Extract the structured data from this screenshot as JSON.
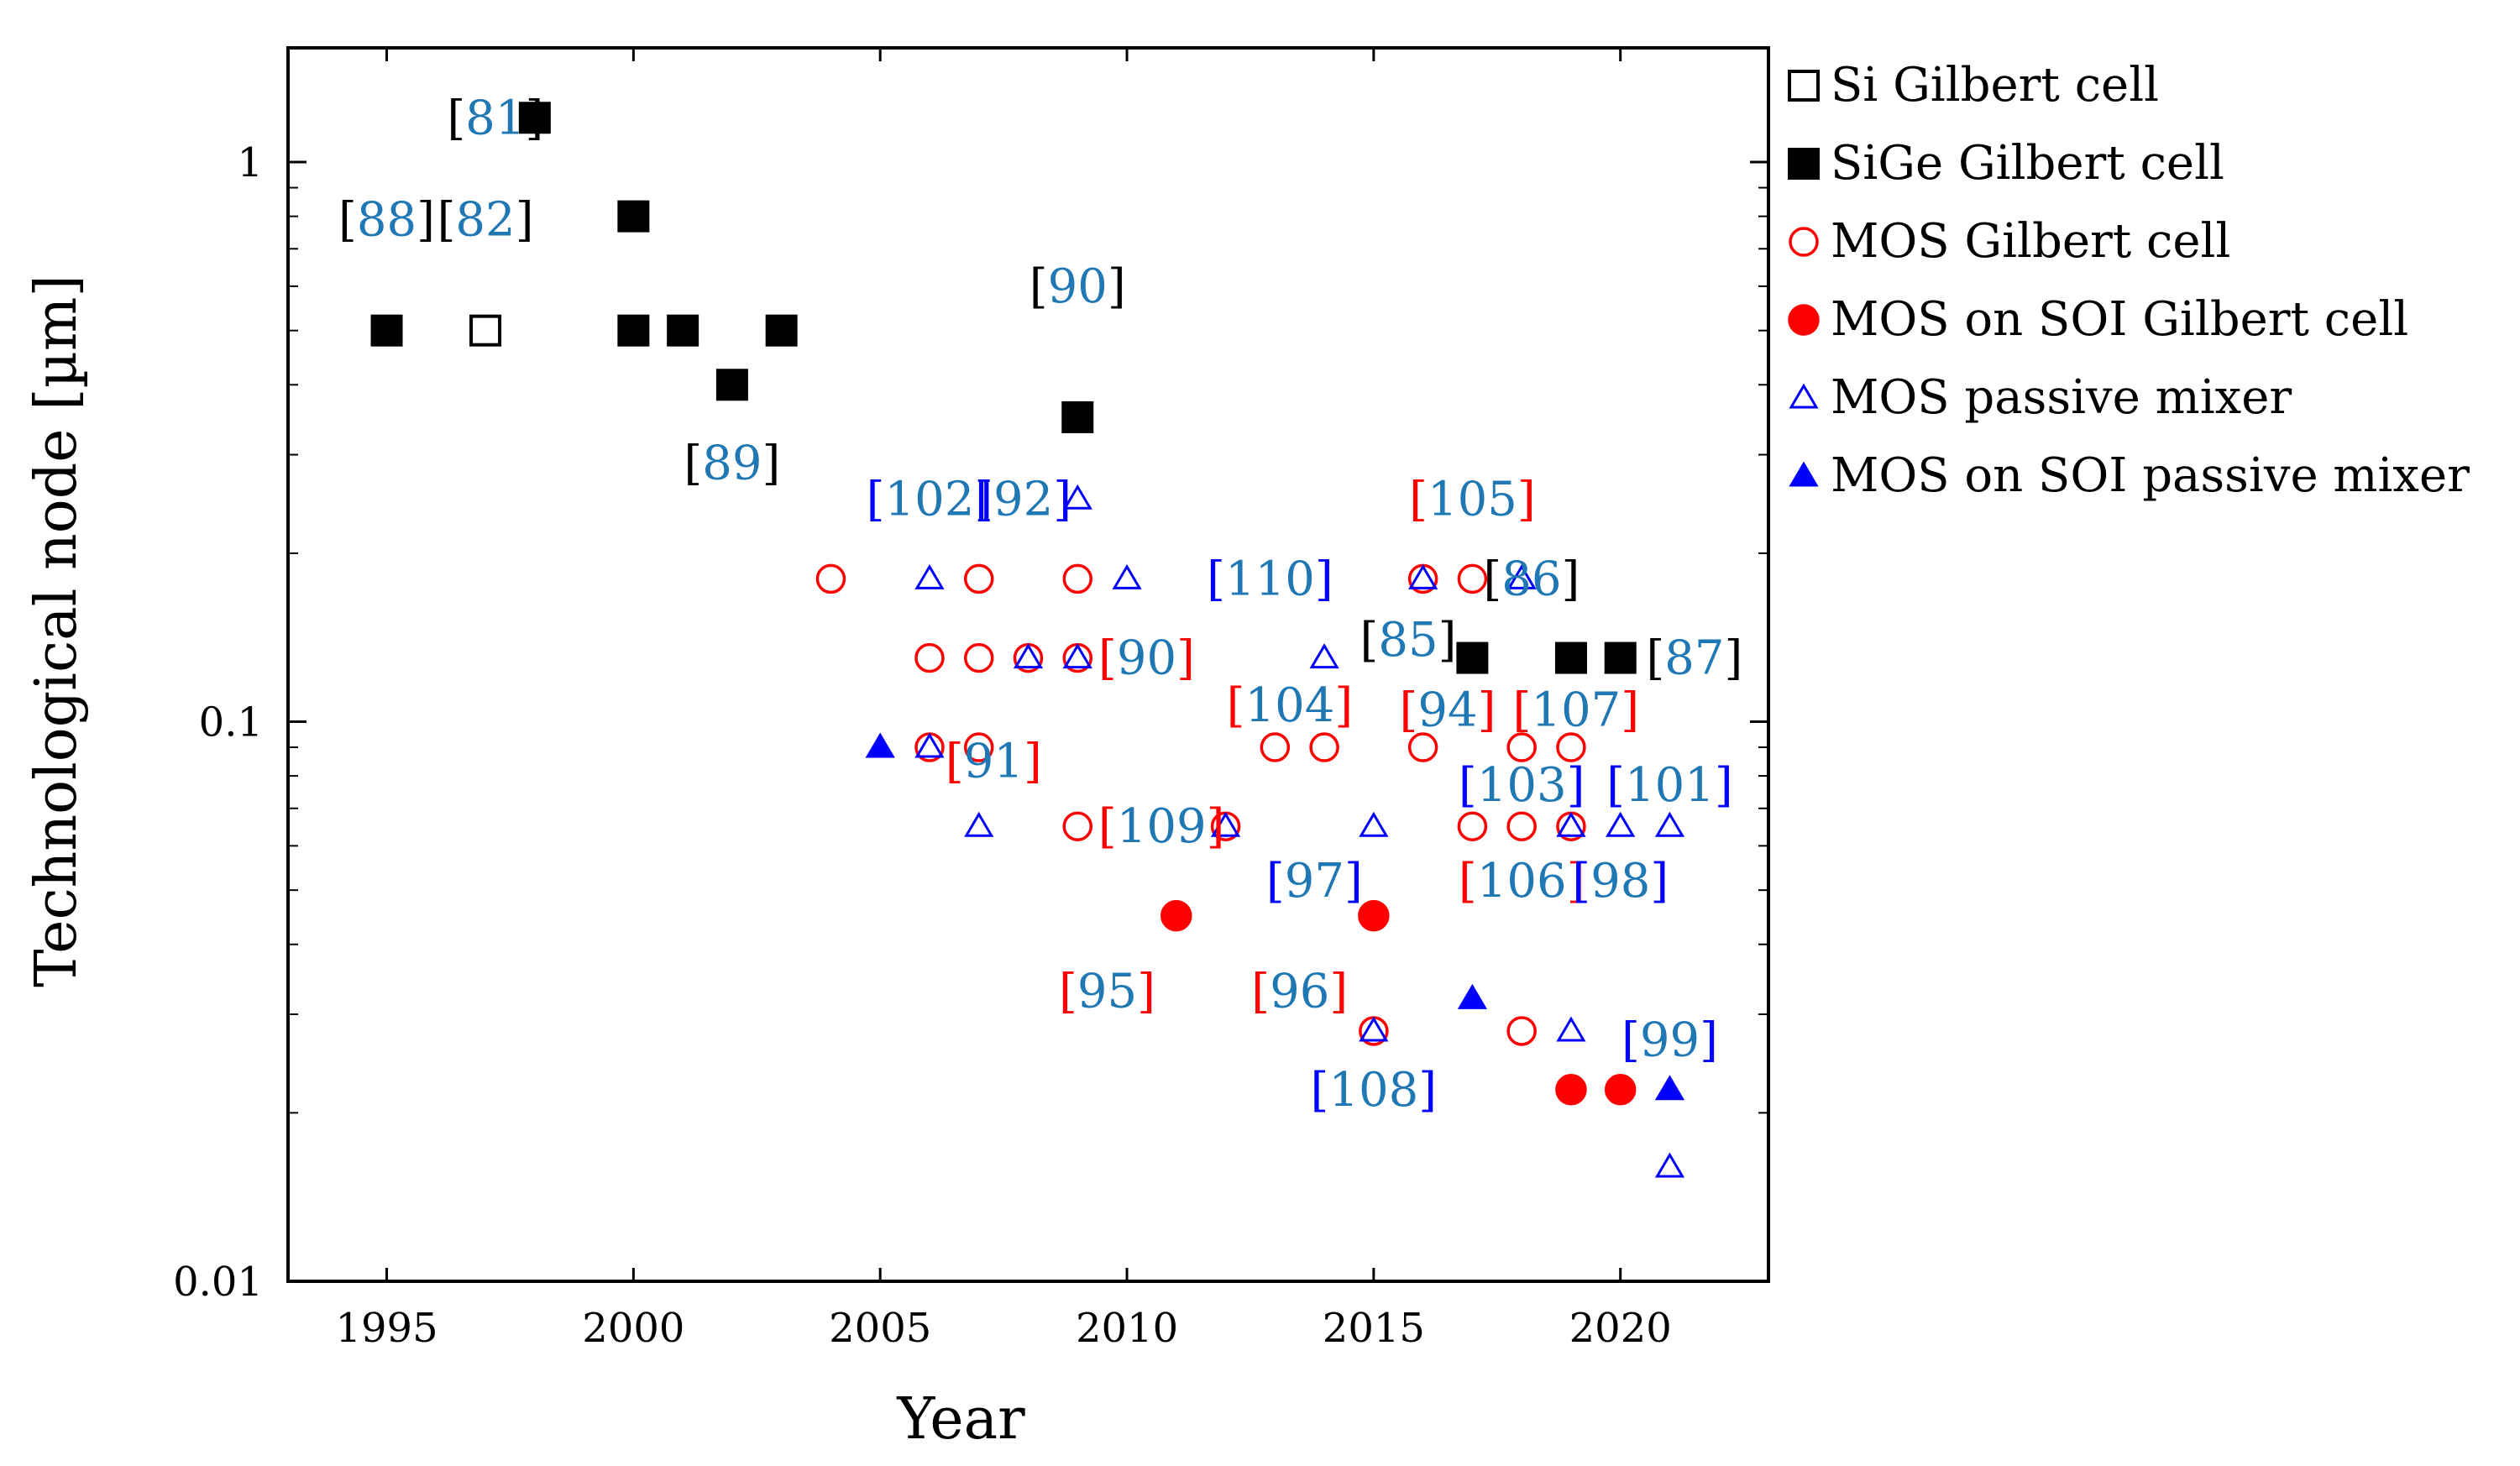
{
  "chart_data": {
    "type": "scatter",
    "xlabel": "Year",
    "ylabel": "Technological node [µm]",
    "yscale": "log",
    "xlim": [
      1993,
      2023
    ],
    "ylim": [
      0.01,
      1.6
    ],
    "xticks": [
      1995,
      2000,
      2005,
      2010,
      2015,
      2020
    ],
    "xtick_labels": [
      "1995",
      "2000",
      "2005",
      "2010",
      "2015",
      "2020"
    ],
    "yticks": [
      0.01,
      0.1,
      1
    ],
    "ytick_labels": [
      "0.01",
      "0.1",
      "1"
    ],
    "legend_position": "outside-right",
    "colors": {
      "black": "#000000",
      "red": "#ff0000",
      "blue": "#0000ff",
      "ref_blue": "#1f77b4"
    },
    "series": [
      {
        "name": "Si Gilbert cell",
        "marker": "square-open",
        "color": "#000000",
        "points": [
          [
            1997,
            0.5
          ]
        ]
      },
      {
        "name": "SiGe Gilbert cell",
        "marker": "square-filled",
        "color": "#000000",
        "points": [
          [
            1995,
            0.5
          ],
          [
            1998,
            1.2
          ],
          [
            2000,
            0.8
          ],
          [
            2000,
            0.5
          ],
          [
            2001,
            0.5
          ],
          [
            2002,
            0.4
          ],
          [
            2003,
            0.5
          ],
          [
            2009,
            0.35
          ],
          [
            2017,
            0.13
          ],
          [
            2019,
            0.13
          ],
          [
            2020,
            0.13
          ]
        ]
      },
      {
        "name": "MOS Gilbert cell",
        "marker": "circle-open",
        "color": "#ff0000",
        "points": [
          [
            2004,
            0.18
          ],
          [
            2006,
            0.13
          ],
          [
            2006,
            0.09
          ],
          [
            2007,
            0.18
          ],
          [
            2007,
            0.13
          ],
          [
            2007,
            0.09
          ],
          [
            2008,
            0.13
          ],
          [
            2009,
            0.18
          ],
          [
            2009,
            0.13
          ],
          [
            2009,
            0.065
          ],
          [
            2012,
            0.065
          ],
          [
            2013,
            0.09
          ],
          [
            2014,
            0.09
          ],
          [
            2015,
            0.028
          ],
          [
            2016,
            0.18
          ],
          [
            2016,
            0.09
          ],
          [
            2017,
            0.18
          ],
          [
            2017,
            0.065
          ],
          [
            2018,
            0.09
          ],
          [
            2018,
            0.065
          ],
          [
            2018,
            0.028
          ],
          [
            2019,
            0.09
          ],
          [
            2019,
            0.065
          ]
        ]
      },
      {
        "name": "MOS on SOI Gilbert cell",
        "marker": "circle-filled",
        "color": "#ff0000",
        "points": [
          [
            2011,
            0.045
          ],
          [
            2015,
            0.045
          ],
          [
            2019,
            0.022
          ],
          [
            2020,
            0.022
          ]
        ]
      },
      {
        "name": "MOS passive mixer",
        "marker": "triangle-open",
        "color": "#0000ff",
        "points": [
          [
            2006,
            0.18
          ],
          [
            2006,
            0.09
          ],
          [
            2007,
            0.065
          ],
          [
            2008,
            0.13
          ],
          [
            2009,
            0.25
          ],
          [
            2009,
            0.13
          ],
          [
            2010,
            0.18
          ],
          [
            2012,
            0.065
          ],
          [
            2014,
            0.13
          ],
          [
            2015,
            0.065
          ],
          [
            2015,
            0.028
          ],
          [
            2016,
            0.18
          ],
          [
            2018,
            0.18
          ],
          [
            2019,
            0.065
          ],
          [
            2019,
            0.028
          ],
          [
            2020,
            0.065
          ],
          [
            2021,
            0.065
          ],
          [
            2021,
            0.016
          ]
        ]
      },
      {
        "name": "MOS on SOI passive mixer",
        "marker": "triangle-filled",
        "color": "#0000ff",
        "points": [
          [
            2005,
            0.09
          ],
          [
            2017,
            0.032
          ],
          [
            2021,
            0.022
          ]
        ]
      }
    ],
    "annotations": [
      {
        "text": "[81]",
        "year": 1997.2,
        "node": 1.2,
        "bracket": "#000000",
        "num": "#1f77b4"
      },
      {
        "text": "[88]",
        "year": 1995,
        "node": 0.79,
        "bracket": "#000000",
        "num": "#1f77b4"
      },
      {
        "text": "[82]",
        "year": 1997,
        "node": 0.79,
        "bracket": "#000000",
        "num": "#1f77b4"
      },
      {
        "text": "[89]",
        "year": 2002,
        "node": 0.29,
        "bracket": "#000000",
        "num": "#1f77b4"
      },
      {
        "text": "[90]",
        "year": 2009,
        "node": 0.6,
        "bracket": "#000000",
        "num": "#1f77b4"
      },
      {
        "text": "[102]",
        "year": 2006,
        "node": 0.25,
        "bracket": "#0000ff",
        "num": "#1f77b4"
      },
      {
        "text": "[92]",
        "year": 2007.9,
        "node": 0.25,
        "bracket": "#0000ff",
        "num": "#1f77b4"
      },
      {
        "text": "[90]",
        "year": 2010.4,
        "node": 0.13,
        "bracket": "#ff0000",
        "num": "#1f77b4"
      },
      {
        "text": "[91]",
        "year": 2007.3,
        "node": 0.085,
        "bracket": "#ff0000",
        "num": "#1f77b4"
      },
      {
        "text": "[109]",
        "year": 2010.7,
        "node": 0.065,
        "bracket": "#ff0000",
        "num": "#1f77b4"
      },
      {
        "text": "[95]",
        "year": 2009.6,
        "node": 0.033,
        "bracket": "#ff0000",
        "num": "#1f77b4"
      },
      {
        "text": "[110]",
        "year": 2012.9,
        "node": 0.18,
        "bracket": "#0000ff",
        "num": "#1f77b4"
      },
      {
        "text": "[104]",
        "year": 2013.3,
        "node": 0.107,
        "bracket": "#ff0000",
        "num": "#1f77b4"
      },
      {
        "text": "[97]",
        "year": 2013.8,
        "node": 0.052,
        "bracket": "#0000ff",
        "num": "#1f77b4"
      },
      {
        "text": "[96]",
        "year": 2013.5,
        "node": 0.033,
        "bracket": "#ff0000",
        "num": "#1f77b4"
      },
      {
        "text": "[108]",
        "year": 2015,
        "node": 0.022,
        "bracket": "#0000ff",
        "num": "#1f77b4"
      },
      {
        "text": "[85]",
        "year": 2015.7,
        "node": 0.14,
        "bracket": "#000000",
        "num": "#1f77b4"
      },
      {
        "text": "[105]",
        "year": 2017,
        "node": 0.25,
        "bracket": "#ff0000",
        "num": "#1f77b4"
      },
      {
        "text": "[94]",
        "year": 2016.5,
        "node": 0.105,
        "bracket": "#ff0000",
        "num": "#1f77b4"
      },
      {
        "text": "[86]",
        "year": 2018.2,
        "node": 0.18,
        "bracket": "#000000",
        "num": "#1f77b4"
      },
      {
        "text": "[107]",
        "year": 2019.1,
        "node": 0.105,
        "bracket": "#ff0000",
        "num": "#1f77b4"
      },
      {
        "text": "[103]",
        "year": 2018,
        "node": 0.077,
        "bracket": "#0000ff",
        "num": "#1f77b4"
      },
      {
        "text": "[106]",
        "year": 2018,
        "node": 0.052,
        "bracket": "#ff0000",
        "num": "#1f77b4"
      },
      {
        "text": "[98]",
        "year": 2020,
        "node": 0.052,
        "bracket": "#0000ff",
        "num": "#1f77b4"
      },
      {
        "text": "[101]",
        "year": 2021,
        "node": 0.077,
        "bracket": "#0000ff",
        "num": "#1f77b4"
      },
      {
        "text": "[87]",
        "year": 2021.5,
        "node": 0.13,
        "bracket": "#000000",
        "num": "#1f77b4"
      },
      {
        "text": "[99]",
        "year": 2021,
        "node": 0.027,
        "bracket": "#0000ff",
        "num": "#1f77b4"
      }
    ]
  }
}
